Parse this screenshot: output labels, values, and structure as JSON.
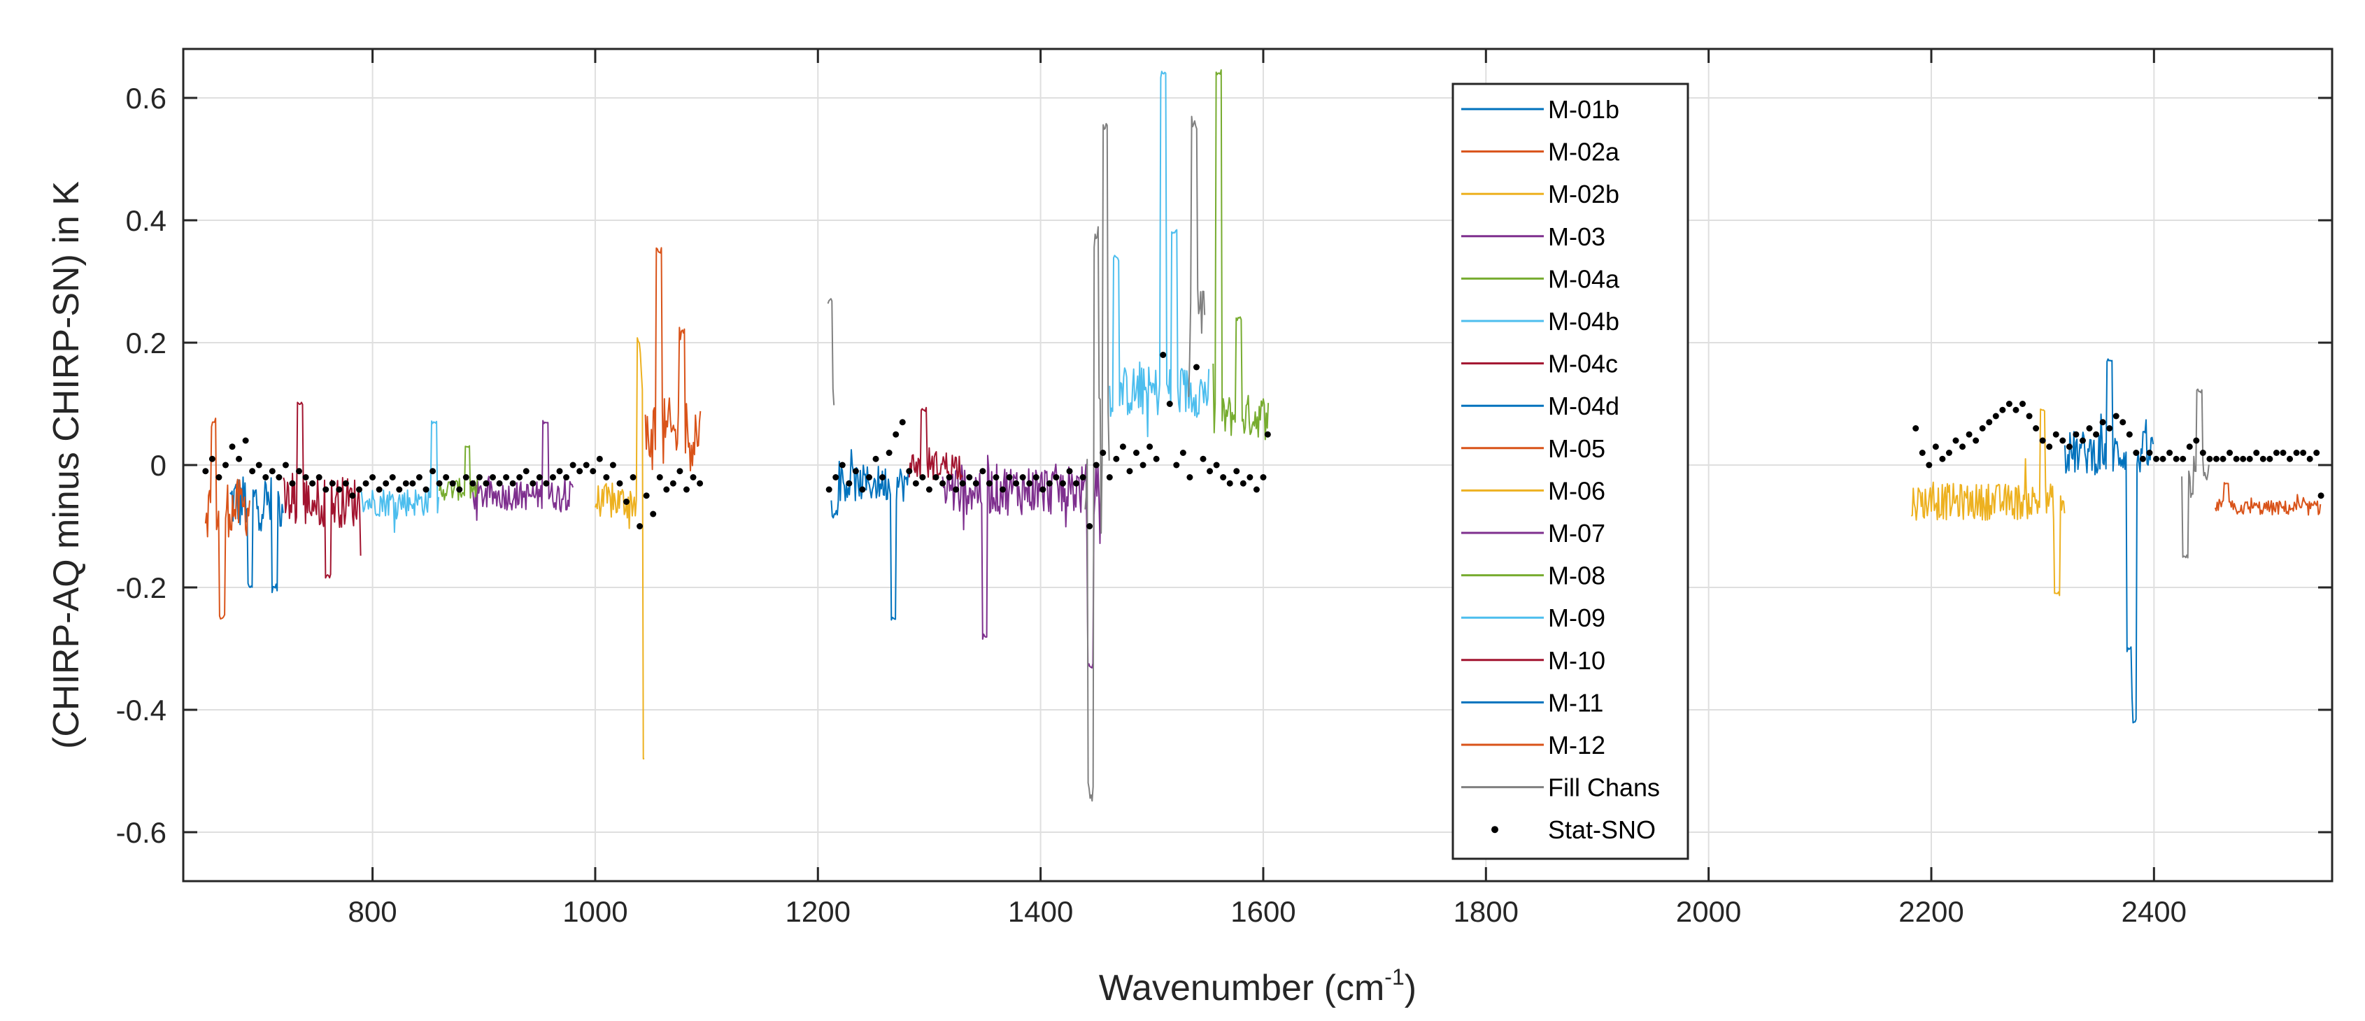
{
  "chart_data": {
    "type": "line",
    "title": "",
    "xlabel": "Wavenumber (cm",
    "xlabel_sup": "-1",
    "xlabel_end": ")",
    "ylabel": "(CHIRP-AQ minus CHIRP-SN) in K",
    "xlim": [
      630,
      2560
    ],
    "ylim": [
      -0.68,
      0.68
    ],
    "xticks": [
      800,
      1000,
      1200,
      1400,
      1600,
      1800,
      2000,
      2200,
      2400
    ],
    "xtick_labels": [
      "800",
      "1000",
      "1200",
      "1400",
      "1600",
      "1800",
      "2000",
      "2200",
      "2400"
    ],
    "yticks": [
      0.6,
      0.4,
      0.2,
      0,
      -0.2,
      -0.4,
      -0.6
    ],
    "ytick_labels": [
      "0.6",
      "0.4",
      "0.2",
      "0",
      "-0.2",
      "-0.4",
      "-0.6"
    ],
    "grid": true,
    "legend_position": "top-center",
    "series": [
      {
        "name": "M-01b",
        "color": "#0072BD",
        "segments": [
          {
            "x0": 672,
            "x1": 720,
            "base": -0.06,
            "amp": 0.08,
            "spikes": [
              [
                690,
                -0.2
              ],
              [
                712,
                -0.2
              ]
            ]
          }
        ]
      },
      {
        "name": "M-02a",
        "color": "#D95319",
        "segments": [
          {
            "x0": 650,
            "x1": 690,
            "base": -0.07,
            "amp": 0.08,
            "spikes": [
              [
                665,
                -0.25
              ],
              [
                657,
                0.07
              ]
            ]
          }
        ]
      },
      {
        "name": "M-02b",
        "color": "#EDB120",
        "segments": [
          {
            "x0": 1000,
            "x1": 1045,
            "base": -0.06,
            "amp": 0.05,
            "spikes": [
              [
                1043,
                -0.48
              ],
              [
                1040,
                0.2
              ]
            ]
          }
        ]
      },
      {
        "name": "M-03",
        "color": "#7E2F8E",
        "segments": [
          {
            "x0": 890,
            "x1": 980,
            "base": -0.05,
            "amp": 0.04,
            "spikes": [
              [
                955,
                0.07
              ]
            ]
          }
        ]
      },
      {
        "name": "M-04a",
        "color": "#77AC30",
        "segments": [
          {
            "x0": 860,
            "x1": 895,
            "base": -0.04,
            "amp": 0.03,
            "spikes": [
              [
                885,
                0.03
              ]
            ]
          },
          {
            "x0": 1555,
            "x1": 1605,
            "base": 0.08,
            "amp": 0.06,
            "spikes": [
              [
                1560,
                0.64
              ],
              [
                1578,
                0.24
              ]
            ]
          }
        ]
      },
      {
        "name": "M-04b",
        "color": "#4DBEEE",
        "segments": [
          {
            "x0": 790,
            "x1": 860,
            "base": -0.06,
            "amp": 0.04,
            "spikes": [
              [
                855,
                0.07
              ]
            ]
          },
          {
            "x0": 1462,
            "x1": 1552,
            "base": 0.12,
            "amp": 0.07,
            "spikes": [
              [
                1510,
                0.64
              ],
              [
                1468,
                0.34
              ],
              [
                1520,
                0.38
              ]
            ]
          }
        ]
      },
      {
        "name": "M-04c",
        "color": "#A2142F",
        "segments": [
          {
            "x0": 720,
            "x1": 790,
            "base": -0.06,
            "amp": 0.07,
            "spikes": [
              [
                735,
                0.1
              ],
              [
                760,
                -0.18
              ]
            ]
          }
        ]
      },
      {
        "name": "M-04d",
        "color": "#0072BD",
        "segments": [
          {
            "x0": 1212,
            "x1": 1282,
            "base": -0.03,
            "amp": 0.05,
            "spikes": [
              [
                1268,
                -0.25
              ],
              [
                1215,
                -0.08
              ]
            ]
          }
        ]
      },
      {
        "name": "M-05",
        "color": "#D95319",
        "segments": [
          {
            "x0": 1045,
            "x1": 1095,
            "base": 0.05,
            "amp": 0.1,
            "spikes": [
              [
                1057,
                0.35
              ],
              [
                1078,
                0.22
              ]
            ]
          }
        ]
      },
      {
        "name": "M-06",
        "color": "#EDB120",
        "segments": [
          {
            "x0": 2182,
            "x1": 2320,
            "base": -0.06,
            "amp": 0.05,
            "spikes": [
              [
                2313,
                -0.21
              ],
              [
                2300,
                0.09
              ]
            ]
          }
        ]
      },
      {
        "name": "M-07",
        "color": "#7E2F8E",
        "segments": [
          {
            "x0": 1312,
            "x1": 1455,
            "base": -0.04,
            "amp": 0.07,
            "spikes": [
              [
                1350,
                -0.28
              ],
              [
                1445,
                -0.33
              ]
            ]
          }
        ]
      },
      {
        "name": "M-08",
        "color": "#77AC30",
        "segments": []
      },
      {
        "name": "M-09",
        "color": "#4DBEEE",
        "segments": []
      },
      {
        "name": "M-10",
        "color": "#A2142F",
        "segments": [
          {
            "x0": 1282,
            "x1": 1330,
            "base": 0.0,
            "amp": 0.04,
            "spikes": [
              [
                1295,
                0.09
              ]
            ]
          }
        ]
      },
      {
        "name": "M-11",
        "color": "#0072BD",
        "segments": [
          {
            "x0": 2320,
            "x1": 2400,
            "base": 0.02,
            "amp": 0.06,
            "spikes": [
              [
                2360,
                0.17
              ],
              [
                2382,
                -0.42
              ],
              [
                2378,
                -0.3
              ]
            ]
          }
        ]
      },
      {
        "name": "M-12",
        "color": "#D95319",
        "segments": [
          {
            "x0": 2455,
            "x1": 2550,
            "base": -0.07,
            "amp": 0.02,
            "spikes": [
              [
                2465,
                -0.03
              ]
            ]
          }
        ]
      },
      {
        "name": "Fill Chans",
        "color": "#808080",
        "segments": [
          {
            "x0": 1209,
            "x1": 1215,
            "base": 0.1,
            "amp": 0.1,
            "spikes": [
              [
                1211,
                0.27
              ]
            ]
          },
          {
            "x0": 1440,
            "x1": 1462,
            "base": 0.0,
            "amp": 0.2,
            "spikes": [
              [
                1445,
                -0.54
              ],
              [
                1458,
                0.55
              ],
              [
                1450,
                0.37
              ]
            ]
          },
          {
            "x0": 1533,
            "x1": 1548,
            "base": 0.2,
            "amp": 0.15,
            "spikes": [
              [
                1538,
                0.56
              ]
            ]
          },
          {
            "x0": 2425,
            "x1": 2450,
            "base": -0.02,
            "amp": 0.06,
            "spikes": [
              [
                2441,
                0.12
              ],
              [
                2428,
                -0.15
              ]
            ]
          }
        ]
      }
    ],
    "scatter": {
      "name": "Stat-SNO",
      "color": "#000000",
      "points": [
        [
          650,
          -0.01
        ],
        [
          656,
          0.01
        ],
        [
          662,
          -0.02
        ],
        [
          668,
          0.0
        ],
        [
          674,
          0.03
        ],
        [
          680,
          0.01
        ],
        [
          686,
          0.04
        ],
        [
          692,
          -0.01
        ],
        [
          698,
          0.0
        ],
        [
          704,
          -0.02
        ],
        [
          710,
          -0.01
        ],
        [
          716,
          -0.02
        ],
        [
          722,
          0.0
        ],
        [
          728,
          -0.03
        ],
        [
          734,
          -0.01
        ],
        [
          740,
          -0.02
        ],
        [
          746,
          -0.03
        ],
        [
          752,
          -0.02
        ],
        [
          758,
          -0.04
        ],
        [
          764,
          -0.03
        ],
        [
          770,
          -0.04
        ],
        [
          776,
          -0.03
        ],
        [
          782,
          -0.05
        ],
        [
          788,
          -0.04
        ],
        [
          794,
          -0.03
        ],
        [
          800,
          -0.02
        ],
        [
          806,
          -0.04
        ],
        [
          812,
          -0.03
        ],
        [
          818,
          -0.02
        ],
        [
          824,
          -0.04
        ],
        [
          830,
          -0.03
        ],
        [
          836,
          -0.03
        ],
        [
          842,
          -0.02
        ],
        [
          848,
          -0.04
        ],
        [
          854,
          -0.01
        ],
        [
          860,
          -0.03
        ],
        [
          866,
          -0.02
        ],
        [
          872,
          -0.03
        ],
        [
          878,
          -0.04
        ],
        [
          884,
          -0.02
        ],
        [
          890,
          -0.03
        ],
        [
          896,
          -0.02
        ],
        [
          902,
          -0.03
        ],
        [
          908,
          -0.02
        ],
        [
          914,
          -0.03
        ],
        [
          920,
          -0.02
        ],
        [
          926,
          -0.03
        ],
        [
          932,
          -0.02
        ],
        [
          938,
          -0.01
        ],
        [
          944,
          -0.03
        ],
        [
          950,
          -0.02
        ],
        [
          956,
          -0.03
        ],
        [
          962,
          -0.02
        ],
        [
          968,
          -0.01
        ],
        [
          974,
          -0.02
        ],
        [
          980,
          0.0
        ],
        [
          986,
          -0.01
        ],
        [
          992,
          0.0
        ],
        [
          998,
          -0.01
        ],
        [
          1004,
          0.01
        ],
        [
          1010,
          -0.02
        ],
        [
          1016,
          0.0
        ],
        [
          1022,
          -0.03
        ],
        [
          1028,
          -0.06
        ],
        [
          1034,
          -0.02
        ],
        [
          1040,
          -0.1
        ],
        [
          1046,
          -0.05
        ],
        [
          1052,
          -0.08
        ],
        [
          1058,
          -0.02
        ],
        [
          1064,
          -0.04
        ],
        [
          1070,
          -0.03
        ],
        [
          1076,
          -0.01
        ],
        [
          1082,
          -0.04
        ],
        [
          1088,
          -0.02
        ],
        [
          1094,
          -0.03
        ],
        [
          1210,
          -0.04
        ],
        [
          1216,
          -0.02
        ],
        [
          1222,
          0.0
        ],
        [
          1228,
          -0.03
        ],
        [
          1234,
          -0.01
        ],
        [
          1240,
          -0.04
        ],
        [
          1246,
          -0.02
        ],
        [
          1252,
          0.01
        ],
        [
          1258,
          -0.02
        ],
        [
          1264,
          0.02
        ],
        [
          1270,
          0.05
        ],
        [
          1276,
          0.07
        ],
        [
          1282,
          -0.01
        ],
        [
          1288,
          -0.03
        ],
        [
          1294,
          -0.02
        ],
        [
          1300,
          -0.04
        ],
        [
          1306,
          -0.02
        ],
        [
          1312,
          -0.03
        ],
        [
          1318,
          -0.02
        ],
        [
          1324,
          -0.04
        ],
        [
          1330,
          -0.03
        ],
        [
          1336,
          -0.02
        ],
        [
          1342,
          -0.03
        ],
        [
          1348,
          -0.01
        ],
        [
          1354,
          -0.03
        ],
        [
          1360,
          -0.02
        ],
        [
          1366,
          -0.04
        ],
        [
          1372,
          -0.02
        ],
        [
          1378,
          -0.03
        ],
        [
          1384,
          -0.02
        ],
        [
          1390,
          -0.03
        ],
        [
          1396,
          -0.02
        ],
        [
          1402,
          -0.04
        ],
        [
          1408,
          -0.03
        ],
        [
          1414,
          -0.02
        ],
        [
          1420,
          -0.03
        ],
        [
          1426,
          -0.01
        ],
        [
          1432,
          -0.03
        ],
        [
          1438,
          -0.02
        ],
        [
          1444,
          -0.1
        ],
        [
          1450,
          0.0
        ],
        [
          1456,
          0.02
        ],
        [
          1462,
          -0.02
        ],
        [
          1468,
          0.01
        ],
        [
          1474,
          0.03
        ],
        [
          1480,
          -0.01
        ],
        [
          1486,
          0.02
        ],
        [
          1492,
          0.0
        ],
        [
          1498,
          0.03
        ],
        [
          1504,
          0.01
        ],
        [
          1510,
          0.18
        ],
        [
          1516,
          0.1
        ],
        [
          1522,
          0.0
        ],
        [
          1528,
          0.02
        ],
        [
          1534,
          -0.02
        ],
        [
          1540,
          0.16
        ],
        [
          1546,
          0.01
        ],
        [
          1552,
          -0.01
        ],
        [
          1558,
          0.0
        ],
        [
          1564,
          -0.02
        ],
        [
          1570,
          -0.03
        ],
        [
          1576,
          -0.01
        ],
        [
          1582,
          -0.03
        ],
        [
          1588,
          -0.02
        ],
        [
          1594,
          -0.04
        ],
        [
          1600,
          -0.02
        ],
        [
          1604,
          0.05
        ],
        [
          2186,
          0.06
        ],
        [
          2192,
          0.02
        ],
        [
          2198,
          0.0
        ],
        [
          2204,
          0.03
        ],
        [
          2210,
          0.01
        ],
        [
          2216,
          0.02
        ],
        [
          2222,
          0.04
        ],
        [
          2228,
          0.03
        ],
        [
          2234,
          0.05
        ],
        [
          2240,
          0.04
        ],
        [
          2246,
          0.06
        ],
        [
          2252,
          0.07
        ],
        [
          2258,
          0.08
        ],
        [
          2264,
          0.09
        ],
        [
          2270,
          0.1
        ],
        [
          2276,
          0.09
        ],
        [
          2282,
          0.1
        ],
        [
          2288,
          0.08
        ],
        [
          2294,
          0.06
        ],
        [
          2300,
          0.04
        ],
        [
          2306,
          0.03
        ],
        [
          2312,
          0.05
        ],
        [
          2318,
          0.04
        ],
        [
          2324,
          0.03
        ],
        [
          2330,
          0.05
        ],
        [
          2336,
          0.04
        ],
        [
          2342,
          0.06
        ],
        [
          2348,
          0.05
        ],
        [
          2354,
          0.07
        ],
        [
          2360,
          0.06
        ],
        [
          2366,
          0.08
        ],
        [
          2372,
          0.07
        ],
        [
          2378,
          0.05
        ],
        [
          2384,
          0.02
        ],
        [
          2390,
          0.01
        ],
        [
          2396,
          0.02
        ],
        [
          2402,
          0.01
        ],
        [
          2408,
          0.01
        ],
        [
          2414,
          0.02
        ],
        [
          2420,
          0.01
        ],
        [
          2426,
          0.01
        ],
        [
          2432,
          0.03
        ],
        [
          2438,
          0.04
        ],
        [
          2444,
          0.02
        ],
        [
          2450,
          0.01
        ],
        [
          2456,
          0.01
        ],
        [
          2462,
          0.01
        ],
        [
          2468,
          0.02
        ],
        [
          2474,
          0.01
        ],
        [
          2480,
          0.01
        ],
        [
          2486,
          0.01
        ],
        [
          2492,
          0.02
        ],
        [
          2498,
          0.01
        ],
        [
          2504,
          0.01
        ],
        [
          2510,
          0.02
        ],
        [
          2516,
          0.02
        ],
        [
          2522,
          0.01
        ],
        [
          2528,
          0.02
        ],
        [
          2534,
          0.02
        ],
        [
          2540,
          0.01
        ],
        [
          2546,
          0.02
        ],
        [
          2550,
          -0.05
        ]
      ]
    }
  }
}
